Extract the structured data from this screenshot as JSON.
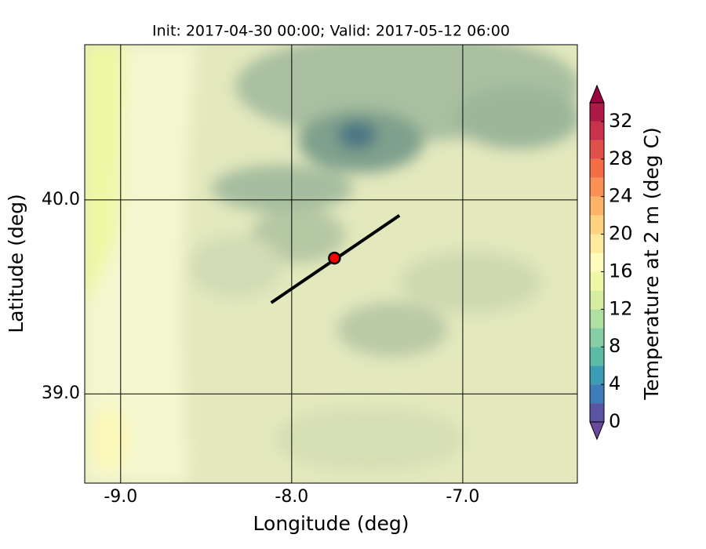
{
  "map_data": {
    "title": "Init: 2017-04-30 00:00; Valid: 2017-05-12 06:00",
    "xlabel": "Longitude (deg)",
    "ylabel": "Latitude (deg)",
    "xlim": [
      -9.21,
      -6.33
    ],
    "ylim": [
      38.54,
      40.8
    ],
    "xticks": [
      {
        "value": -9,
        "label": "-9.0"
      },
      {
        "value": -8,
        "label": "-8.0"
      },
      {
        "value": -7,
        "label": "-7.0"
      }
    ],
    "yticks": [
      {
        "value": 39,
        "label": "39.0"
      },
      {
        "value": 40,
        "label": "40.0"
      }
    ],
    "section": {
      "start": [
        -8.12,
        39.47
      ],
      "end": [
        -7.37,
        39.92
      ],
      "point": [
        -7.75,
        39.7
      ]
    },
    "colorbar": {
      "label": "Temperature at 2 m (deg C)",
      "lim": [
        0,
        34
      ],
      "ticks": [
        0,
        4,
        8,
        12,
        16,
        20,
        24,
        28,
        32
      ],
      "colors": [
        "#5a55a3",
        "#3f7cba",
        "#3c9bb5",
        "#5bbba6",
        "#86cfa5",
        "#b0dfa2",
        "#d5eea0",
        "#eff8a6",
        "#fefbbb",
        "#feeb9d",
        "#fed27f",
        "#fdb467",
        "#fa9054",
        "#f46d43",
        "#e04f4a",
        "#c9314c",
        "#ad1a48"
      ],
      "under": "#6a4a9c",
      "over": "#9e0142"
    }
  }
}
